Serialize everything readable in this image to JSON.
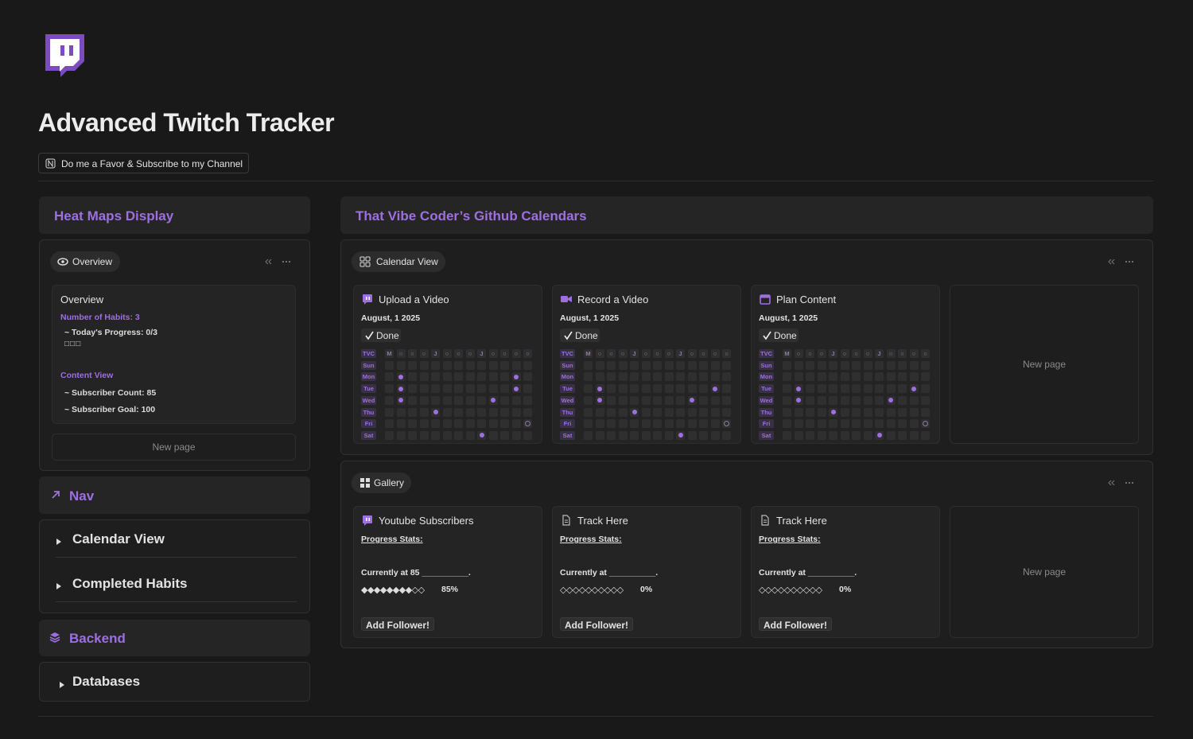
{
  "header": {
    "title": "Advanced Twitch Tracker",
    "button": "Do me a Favor & Subscribe to my Channel"
  },
  "left": {
    "heatmaps": {
      "title": "Heat Maps Display",
      "tab": "Overview",
      "card": {
        "title": "Overview",
        "lines": [
          {
            "text": "Number of Habits: 3",
            "accent": true
          },
          {
            "text": "~ Today's Progress: 0/3",
            "accent": false
          },
          {
            "text": "□□□",
            "accent": false
          },
          {
            "text": "Content View",
            "accent": true
          },
          {
            "text": "~ Subscriber Count: 85",
            "accent": false
          },
          {
            "text": "~ Subscriber Goal: 100",
            "accent": false
          }
        ]
      },
      "new_page": "New page"
    },
    "nav": {
      "title": "Nav",
      "items": [
        "Calendar View",
        "Completed Habits"
      ]
    },
    "backend": {
      "title": "Backend",
      "items": [
        "Databases"
      ]
    }
  },
  "right": {
    "title": "That Vibe Coder’s Github Calendars",
    "calendar": {
      "tab": "Calendar View",
      "corner": "TVC",
      "columns": [
        "M",
        "○",
        "○",
        "○",
        "J",
        "○",
        "○",
        "○",
        "J",
        "○",
        "○",
        "○",
        "○"
      ],
      "days": [
        "Sun",
        "Mon",
        "Tue",
        "Wed",
        "Thu",
        "Fri",
        "Sat"
      ],
      "cards": [
        {
          "title": "Upload a Video",
          "date": "August, 1 2025",
          "status": "Done",
          "dots": [
            [],
            [
              1,
              11
            ],
            [
              1,
              11
            ],
            [
              1,
              9
            ],
            [
              4
            ],
            [],
            [
              8
            ]
          ],
          "rings": [
            [],
            [],
            [],
            [],
            [],
            [
              12
            ],
            []
          ]
        },
        {
          "title": "Record a Video",
          "date": "August, 1 2025",
          "status": "Done",
          "dots": [
            [],
            [],
            [
              1,
              11
            ],
            [
              1,
              9
            ],
            [
              4
            ],
            [],
            [
              8
            ]
          ],
          "rings": [
            [],
            [],
            [],
            [],
            [],
            [
              12
            ],
            []
          ]
        },
        {
          "title": "Plan Content",
          "date": "August, 1 2025",
          "status": "Done",
          "dots": [
            [],
            [],
            [
              1,
              11
            ],
            [
              1,
              9
            ],
            [
              4
            ],
            [],
            [
              8
            ]
          ],
          "rings": [
            [],
            [],
            [],
            [],
            [],
            [
              12
            ],
            []
          ]
        }
      ],
      "new_page": "New page"
    },
    "gallery": {
      "tab": "Gallery",
      "cards": [
        {
          "title": "Youtube Subscribers",
          "stats": "Progress Stats:",
          "current": "Currently at 85 __________.",
          "progress": "◆◆◆◆◆◆◆◆◇◇",
          "percent": "85%",
          "button": "Add Follower!"
        },
        {
          "title": "Track Here",
          "stats": "Progress Stats:",
          "current": "Currently at __________.",
          "progress": "◇◇◇◇◇◇◇◇◇◇",
          "percent": "0%",
          "button": "Add Follower!"
        },
        {
          "title": "Track Here",
          "stats": "Progress Stats:",
          "current": "Currently at __________.",
          "progress": "◇◇◇◇◇◇◇◇◇◇",
          "percent": "0%",
          "button": "Add Follower!"
        }
      ],
      "new_page": "New page"
    }
  }
}
